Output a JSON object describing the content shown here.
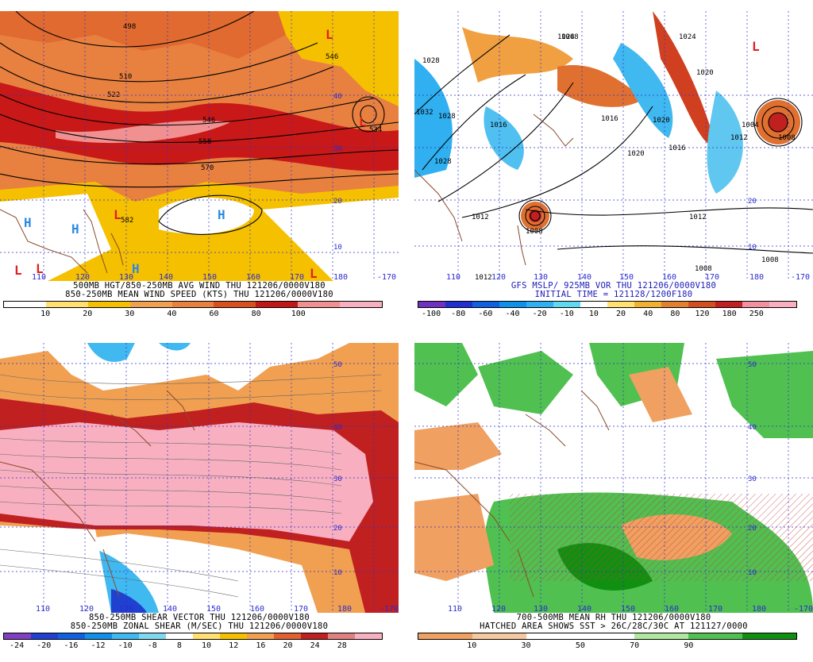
{
  "panels": [
    {
      "caption1": "500MB HGT/850-250MB AVG WIND THU 121206/0000V180",
      "caption2": "850-250MB MEAN WIND SPEED (KTS) THU 121206/0000V180",
      "caption1_color": "#000000",
      "caption2_color": "#000000",
      "colorbar": {
        "ticks": [
          "10",
          "20",
          "30",
          "40",
          "60",
          "80",
          "100"
        ],
        "colors": [
          "#ffffff",
          "#ffe070",
          "#f5c000",
          "#f0a050",
          "#e88040",
          "#d85020",
          "#c01818",
          "#f09090",
          "#f8b0c0"
        ]
      },
      "labels": {
        "lats": [
          "40",
          "30",
          "20",
          "10"
        ],
        "lons": [
          "110",
          "120",
          "130",
          "140",
          "150",
          "160",
          "170",
          "180",
          "-170"
        ],
        "heights": [
          "498",
          "510",
          "522",
          "534",
          "546",
          "558",
          "570",
          "582",
          "582",
          "546",
          "534"
        ]
      }
    },
    {
      "caption1": "GFS MSLP/ 925MB VOR THU 121206/0000V180",
      "caption2": "INITIAL TIME = 121128/1200F180",
      "caption1_color": "#1a1ab8",
      "caption2_color": "#1a1ab8",
      "colorbar": {
        "ticks": [
          "-100",
          "-80",
          "-60",
          "-40",
          "-20",
          "-10",
          "10",
          "20",
          "40",
          "80",
          "120",
          "180",
          "250"
        ],
        "colors": [
          "#7030c0",
          "#2030d0",
          "#1060e0",
          "#1090e8",
          "#30b0f0",
          "#60d8f0",
          "#ffffff",
          "#ffe070",
          "#f0b030",
          "#e08030",
          "#d05020",
          "#c02020",
          "#f090a0",
          "#f8b0c0"
        ]
      },
      "labels": {
        "lats": [
          "20",
          "10"
        ],
        "lons": [
          "110",
          "120",
          "130",
          "140",
          "150",
          "160",
          "170",
          "180",
          "-170"
        ],
        "pressures": [
          "1028",
          "1032",
          "1028",
          "1024",
          "1028",
          "1020",
          "1016",
          "1020",
          "1016",
          "1024",
          "1020",
          "1016",
          "1012",
          "1008",
          "1012",
          "1008",
          "1008",
          "1008",
          "1012",
          "1008",
          "1012",
          "1004"
        ]
      }
    },
    {
      "caption1": "850-250MB SHEAR VECTOR THU 121206/0000V180",
      "caption2": "850-250MB ZONAL SHEAR (M/SEC) THU 121206/0000V180",
      "caption1_color": "#000000",
      "caption2_color": "#000000",
      "colorbar": {
        "ticks": [
          "-24",
          "-20",
          "-16",
          "-12",
          "-10",
          "-8",
          "8",
          "10",
          "12",
          "16",
          "20",
          "24",
          "28"
        ],
        "colors": [
          "#8040c0",
          "#2040d0",
          "#1060e0",
          "#1090e8",
          "#40b8f0",
          "#80d8f0",
          "#ffffff",
          "#ffe070",
          "#f5c000",
          "#f0a050",
          "#e06030",
          "#c02020",
          "#e08080",
          "#f8b0c0"
        ]
      },
      "labels": {
        "lats": [
          "50",
          "40",
          "30",
          "20",
          "10"
        ],
        "lons": [
          "110",
          "120",
          "130",
          "140",
          "150",
          "160",
          "170",
          "180",
          "-170"
        ]
      }
    },
    {
      "caption1": "700-500MB MEAN RH THU 121206/0000V180",
      "caption2": "HATCHED AREA SHOWS SST > 26C/28C/30C AT 121127/0000",
      "caption1_color": "#000000",
      "caption2_color": "#000000",
      "colorbar": {
        "ticks": [
          "10",
          "30",
          "50",
          "70",
          "90"
        ],
        "colors": [
          "#f0a060",
          "#f5c8a0",
          "#ffffff",
          "#ffffff",
          "#b0e8a0",
          "#50c050",
          "#109010"
        ]
      },
      "labels": {
        "lats": [
          "50",
          "40",
          "30",
          "20",
          "10"
        ],
        "lons": [
          "110",
          "120",
          "130",
          "140",
          "150",
          "160",
          "170",
          "180",
          "-170"
        ]
      }
    }
  ],
  "letters": {
    "H": "H",
    "L": "L"
  },
  "colors": {
    "grid": "#3030d0",
    "coast": "#8a4a2a"
  }
}
